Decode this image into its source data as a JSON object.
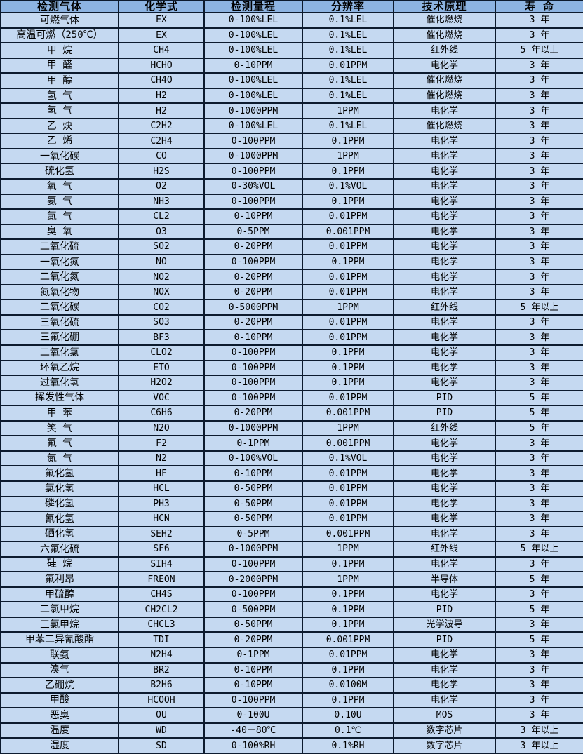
{
  "colors": {
    "header_bg": "#8db4e2",
    "row_bg": "#c5d9f1",
    "border": "#0d1b2e",
    "text": "#000000"
  },
  "table": {
    "headers": [
      "检测气体",
      "化学式",
      "检测量程",
      "分辨率",
      "技术原理",
      "寿 命"
    ],
    "rows": [
      [
        "可燃气体",
        "EX",
        "0-100%LEL",
        "0.1%LEL",
        "催化燃烧",
        "3 年"
      ],
      [
        "高温可燃（250℃）",
        "EX",
        "0-100%LEL",
        "0.1%LEL",
        "催化燃烧",
        "3 年"
      ],
      [
        "甲 烷",
        "CH4",
        "0-100%LEL",
        "0.1%LEL",
        "红外线",
        "5 年以上"
      ],
      [
        "甲 醛",
        "HCHO",
        "0-10PPM",
        "0.01PPM",
        "电化学",
        "3 年"
      ],
      [
        "甲 醇",
        "CH4O",
        "0-100%LEL",
        "0.1%LEL",
        "催化燃烧",
        "3 年"
      ],
      [
        "氢 气",
        "H2",
        "0-100%LEL",
        "0.1%LEL",
        "催化燃烧",
        "3 年"
      ],
      [
        "氢 气",
        "H2",
        "0-1000PPM",
        "1PPM",
        "电化学",
        "3 年"
      ],
      [
        "乙 炔",
        "C2H2",
        "0-100%LEL",
        "0.1%LEL",
        "催化燃烧",
        "3 年"
      ],
      [
        "乙 烯",
        "C2H4",
        "0-100PPM",
        "0.1PPM",
        "电化学",
        "3 年"
      ],
      [
        "一氧化碳",
        "CO",
        "0-1000PPM",
        "1PPM",
        "电化学",
        "3 年"
      ],
      [
        "硫化氢",
        "H2S",
        "0-100PPM",
        "0.1PPM",
        "电化学",
        "3 年"
      ],
      [
        "氧 气",
        "O2",
        "0-30%VOL",
        "0.1%VOL",
        "电化学",
        "3 年"
      ],
      [
        "氨 气",
        "NH3",
        "0-100PPM",
        "0.1PPM",
        "电化学",
        "3 年"
      ],
      [
        "氯 气",
        "CL2",
        "0-10PPM",
        "0.01PPM",
        "电化学",
        "3 年"
      ],
      [
        "臭 氧",
        "O3",
        "0-5PPM",
        "0.001PPM",
        "电化学",
        "3 年"
      ],
      [
        "二氧化硫",
        "SO2",
        "0-20PPM",
        "0.01PPM",
        "电化学",
        "3 年"
      ],
      [
        "一氧化氮",
        "NO",
        "0-100PPM",
        "0.1PPM",
        "电化学",
        "3 年"
      ],
      [
        "二氧化氮",
        "NO2",
        "0-20PPM",
        "0.01PPM",
        "电化学",
        "3 年"
      ],
      [
        "氮氧化物",
        "NOX",
        "0-20PPM",
        "0.01PPM",
        "电化学",
        "3 年"
      ],
      [
        "二氧化碳",
        "CO2",
        "0-5000PPM",
        "1PPM",
        "红外线",
        "5 年以上"
      ],
      [
        "三氧化硫",
        "SO3",
        "0-20PPM",
        "0.01PPM",
        "电化学",
        "3 年"
      ],
      [
        "三氟化硼",
        "BF3",
        "0-10PPM",
        "0.01PPM",
        "电化学",
        "3 年"
      ],
      [
        "二氧化氯",
        "CLO2",
        "0-100PPM",
        "0.1PPM",
        "电化学",
        "3 年"
      ],
      [
        "环氧乙烷",
        "ETO",
        "0-100PPM",
        "0.1PPM",
        "电化学",
        "3 年"
      ],
      [
        "过氧化氢",
        "H2O2",
        "0-100PPM",
        "0.1PPM",
        "电化学",
        "3 年"
      ],
      [
        "挥发性气体",
        "VOC",
        "0-100PPM",
        "0.01PPM",
        "PID",
        "5 年"
      ],
      [
        "甲 苯",
        "C6H6",
        "0-20PPM",
        "0.001PPM",
        "PID",
        "5 年"
      ],
      [
        "笑 气",
        "N2O",
        "0-1000PPM",
        "1PPM",
        "红外线",
        "5 年"
      ],
      [
        "氟 气",
        "F2",
        "0-1PPM",
        "0.001PPM",
        "电化学",
        "3 年"
      ],
      [
        "氮 气",
        "N2",
        "0-100%VOL",
        "0.1%VOL",
        "电化学",
        "3 年"
      ],
      [
        "氟化氢",
        "HF",
        "0-10PPM",
        "0.01PPM",
        "电化学",
        "3 年"
      ],
      [
        "氯化氢",
        "HCL",
        "0-50PPM",
        "0.01PPM",
        "电化学",
        "3 年"
      ],
      [
        "磷化氢",
        "PH3",
        "0-50PPM",
        "0.01PPM",
        "电化学",
        "3 年"
      ],
      [
        "氰化氢",
        "HCN",
        "0-50PPM",
        "0.01PPM",
        "电化学",
        "3 年"
      ],
      [
        "硒化氢",
        "SEH2",
        "0-5PPM",
        "0.001PPM",
        "电化学",
        "3 年"
      ],
      [
        "六氟化硫",
        "SF6",
        "0-1000PPM",
        "1PPM",
        "红外线",
        "5 年以上"
      ],
      [
        "硅 烷",
        "SIH4",
        "0-100PPM",
        "0.1PPM",
        "电化学",
        "3 年"
      ],
      [
        "氟利昂",
        "FREON",
        "0-2000PPM",
        "1PPM",
        "半导体",
        "5 年"
      ],
      [
        "甲硫醇",
        "CH4S",
        "0-100PPM",
        "0.1PPM",
        "电化学",
        "3 年"
      ],
      [
        "二氯甲烷",
        "CH2CL2",
        "0-500PPM",
        "0.1PPM",
        "PID",
        "5 年"
      ],
      [
        "三氯甲烷",
        "CHCL3",
        "0-50PPM",
        "0.1PPM",
        "光学波导",
        "3 年"
      ],
      [
        "甲苯二异氰酸酯",
        "TDI",
        "0-20PPM",
        "0.001PPM",
        "PID",
        "5 年"
      ],
      [
        "联氨",
        "N2H4",
        "0-1PPM",
        "0.01PPM",
        "电化学",
        "3 年"
      ],
      [
        "溴气",
        "BR2",
        "0-10PPM",
        "0.1PPM",
        "电化学",
        "3 年"
      ],
      [
        "乙硼烷",
        "B2H6",
        "0-10PPM",
        "0.0100M",
        "电化学",
        "3 年"
      ],
      [
        "甲酸",
        "HCOOH",
        "0-100PPM",
        "0.1PPM",
        "电化学",
        "3 年"
      ],
      [
        "恶臭",
        "OU",
        "0-100U",
        "0.10U",
        "MOS",
        "3 年"
      ],
      [
        "温度",
        "WD",
        "-40－80℃",
        "0.1℃",
        "数字芯片",
        "3 年以上"
      ],
      [
        "湿度",
        "SD",
        "0-100%RH",
        "0.1%RH",
        "数字芯片",
        "3 年以上"
      ]
    ],
    "column_names": [
      "gas-name",
      "chemical-formula",
      "detection-range",
      "resolution",
      "technology-principle",
      "lifespan"
    ]
  }
}
